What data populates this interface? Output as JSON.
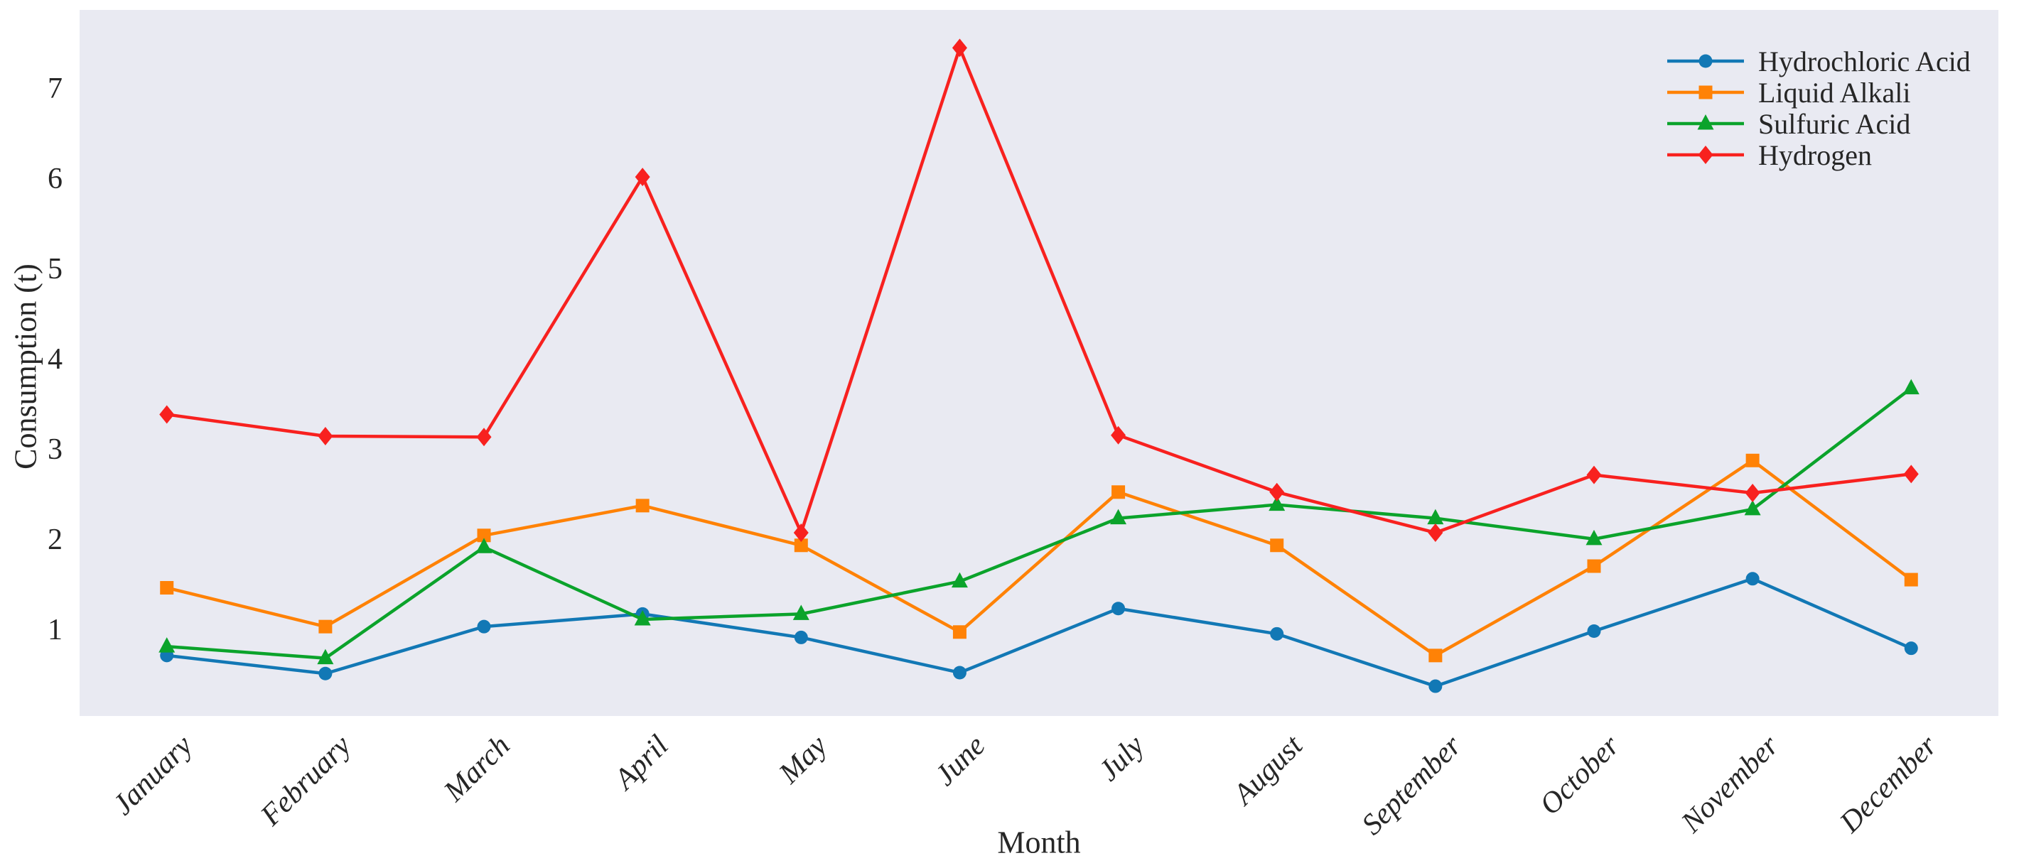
{
  "figure": {
    "background": "#ffffff",
    "plot_background": "#e9eaf2",
    "text_color": "#262626"
  },
  "chart_data": {
    "type": "line",
    "title": "",
    "xlabel": "Month",
    "ylabel": "Consumption (t)",
    "categories": [
      "January",
      "February",
      "March",
      "April",
      "May",
      "June",
      "July",
      "August",
      "September",
      "October",
      "November",
      "December"
    ],
    "yticks": [
      1,
      2,
      3,
      4,
      5,
      6,
      7
    ],
    "ylim": [
      0.05,
      7.87
    ],
    "x_margin": 0.55,
    "grid": false,
    "legend_position": "upper right",
    "series": [
      {
        "name": "Hydrochloric Acid",
        "marker": "circle",
        "color": "#1278b5",
        "values": [
          0.72,
          0.52,
          1.04,
          1.18,
          0.92,
          0.53,
          1.24,
          0.96,
          0.38,
          0.99,
          1.57,
          0.8
        ]
      },
      {
        "name": "Liquid Alkali",
        "marker": "square",
        "color": "#ff8206",
        "values": [
          1.47,
          1.04,
          2.05,
          2.38,
          1.94,
          0.98,
          2.53,
          1.94,
          0.72,
          1.71,
          2.88,
          1.56
        ]
      },
      {
        "name": "Sulfuric Acid",
        "marker": "triangle",
        "color": "#0ba32b",
        "values": [
          0.82,
          0.69,
          1.92,
          1.12,
          1.18,
          1.54,
          2.24,
          2.39,
          2.24,
          2.01,
          2.34,
          3.68
        ]
      },
      {
        "name": "Hydrogen",
        "marker": "diamond",
        "color": "#f8211f",
        "values": [
          3.39,
          3.15,
          3.14,
          6.02,
          2.08,
          7.45,
          3.16,
          2.53,
          2.08,
          2.72,
          2.52,
          2.73
        ]
      }
    ]
  }
}
